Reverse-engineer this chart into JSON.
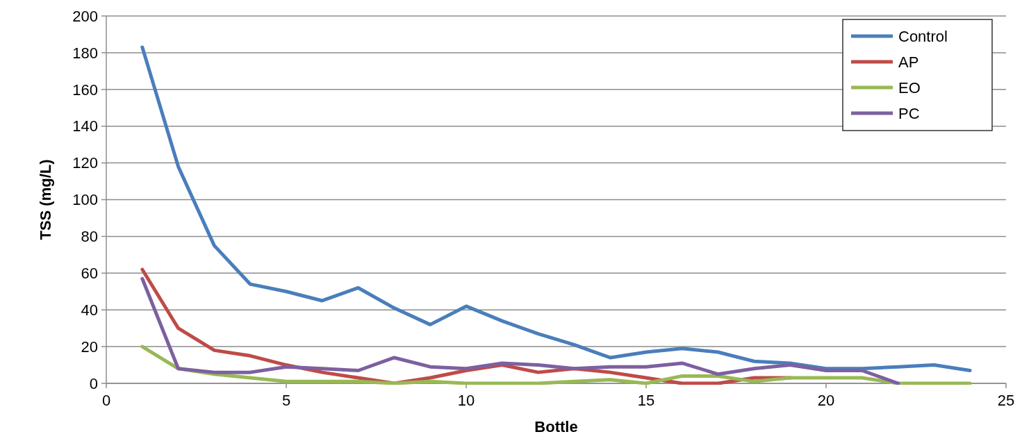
{
  "chart_data": {
    "type": "line",
    "xlabel": "Bottle",
    "ylabel": "TSS (mg/L)",
    "xlim": [
      0,
      25
    ],
    "xticks": [
      0,
      5,
      10,
      15,
      20,
      25
    ],
    "ylim": [
      0,
      200
    ],
    "yticks": [
      0,
      20,
      40,
      60,
      80,
      100,
      120,
      140,
      160,
      180,
      200
    ],
    "grid": "y",
    "legend": "top right",
    "marker": "none",
    "line_style": "solid",
    "series": [
      {
        "name": "Control",
        "color": "#4a7ebb",
        "x": [
          1,
          2,
          3,
          4,
          5,
          6,
          7,
          8,
          9,
          10,
          11,
          12,
          13,
          14,
          15,
          16,
          17,
          18,
          19,
          20,
          21,
          22,
          23,
          24
        ],
        "values": [
          183,
          118,
          75,
          54,
          50,
          45,
          52,
          41,
          32,
          42,
          34,
          27,
          21,
          14,
          17,
          19,
          17,
          12,
          11,
          8,
          8,
          9,
          10,
          7
        ]
      },
      {
        "name": "AP",
        "color": "#be4b48",
        "x": [
          1,
          2,
          3,
          4,
          5,
          6,
          7,
          8,
          9,
          10,
          11,
          12,
          13,
          14,
          15,
          16,
          17,
          18,
          19
        ],
        "values": [
          62,
          30,
          18,
          15,
          10,
          6,
          3,
          0,
          3,
          7,
          10,
          6,
          8,
          6,
          3,
          0,
          0,
          3,
          3
        ]
      },
      {
        "name": "EO",
        "color": "#98b954",
        "x": [
          1,
          2,
          3,
          4,
          5,
          6,
          7,
          8,
          9,
          10,
          11,
          12,
          13,
          14,
          15,
          16,
          17,
          18,
          19,
          20,
          21,
          22,
          23,
          24
        ],
        "values": [
          20,
          8,
          5,
          3,
          1,
          1,
          1,
          0,
          1,
          0,
          0,
          0,
          1,
          2,
          0,
          4,
          4,
          1,
          3,
          3,
          3,
          0,
          0,
          0
        ]
      },
      {
        "name": "PC",
        "color": "#7d60a0",
        "x": [
          1,
          2,
          3,
          4,
          5,
          6,
          7,
          8,
          9,
          10,
          11,
          12,
          13,
          14,
          15,
          16,
          17,
          18,
          19,
          20,
          21,
          22
        ],
        "values": [
          57,
          8,
          6,
          6,
          9,
          8,
          7,
          14,
          9,
          8,
          11,
          10,
          8,
          9,
          9,
          11,
          5,
          8,
          10,
          7,
          7,
          0
        ]
      }
    ]
  }
}
